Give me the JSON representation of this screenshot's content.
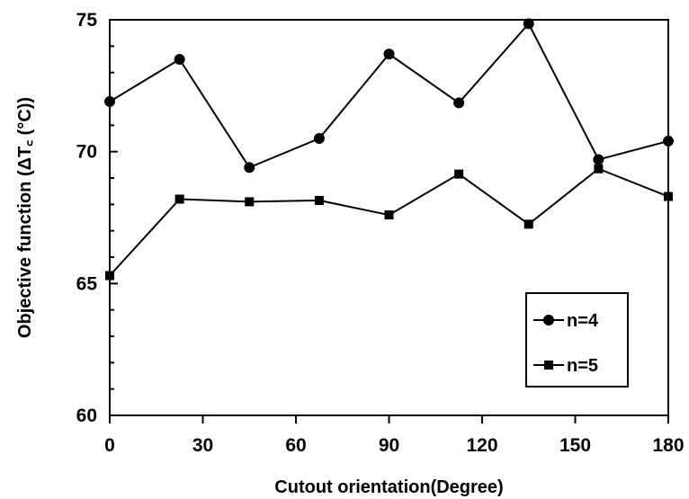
{
  "chart_data": {
    "type": "line",
    "xlabel": "Cutout orientation(Degree)",
    "ylabel": "Objective function (ΔT꜀ (°C))",
    "xlim": [
      0,
      180
    ],
    "ylim": [
      60,
      75
    ],
    "xticks": [
      0,
      30,
      60,
      90,
      120,
      150,
      180
    ],
    "yticks": [
      60,
      65,
      70,
      75
    ],
    "grid": false,
    "legend_position": "bottom-right",
    "series": [
      {
        "name": "n=4",
        "marker": "circle",
        "color": "#000000",
        "x": [
          0,
          22.5,
          45,
          67.5,
          90,
          112.5,
          135,
          157.5,
          180
        ],
        "y": [
          71.9,
          73.5,
          69.4,
          70.5,
          73.7,
          71.85,
          74.85,
          69.7,
          70.4
        ]
      },
      {
        "name": "n=5",
        "marker": "square",
        "color": "#000000",
        "x": [
          0,
          22.5,
          45,
          67.5,
          90,
          112.5,
          135,
          157.5,
          180
        ],
        "y": [
          65.3,
          68.2,
          68.1,
          68.15,
          67.6,
          69.15,
          67.25,
          69.35,
          68.3
        ]
      }
    ]
  }
}
